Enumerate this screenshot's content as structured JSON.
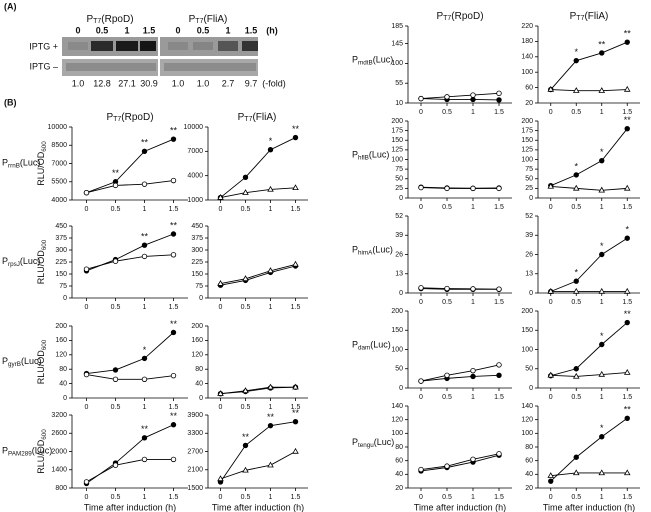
{
  "headers": [
    {
      "prefix": "P",
      "sub": "T7",
      "suffix": "(RpoD)"
    },
    {
      "prefix": "P",
      "sub": "T7",
      "suffix": "(FliA)"
    }
  ],
  "panel_a": {
    "label": "(A)",
    "times": [
      "0",
      "0.5",
      "1",
      "1.5"
    ],
    "time_unit": "(h)",
    "rows": [
      "IPTG +",
      "IPTG –"
    ],
    "folds": [
      [
        "1.0",
        "12.8",
        "27.1",
        "30.9"
      ],
      [
        "1.0",
        "1.0",
        "2.7",
        "9.7"
      ]
    ],
    "fold_unit": "(-fold)"
  },
  "panel_b": {
    "label": "(B)"
  },
  "chart_data": [
    {
      "type": "line",
      "row_label": {
        "prefix": "P",
        "sub": "rrnB",
        "suffix": "(Luc)"
      },
      "ylabel": {
        "main": "RLU/OD",
        "sub": "600"
      },
      "x": [
        0,
        0.5,
        1,
        1.5
      ],
      "xlim": [
        -0.25,
        1.75
      ],
      "xticks": [
        0,
        0.5,
        1,
        1.5
      ],
      "ylim": [
        4000,
        10000
      ],
      "yticks": [
        4000,
        5500,
        7000,
        8500,
        10000
      ],
      "series": [
        {
          "marker": "circle",
          "filled": true,
          "color": "#000000",
          "values": [
            4600,
            5500,
            8000,
            9000
          ],
          "annotations": [
            null,
            "**",
            "**",
            "**"
          ]
        },
        {
          "marker": "circle",
          "filled": false,
          "color": "#000000",
          "values": [
            4600,
            5200,
            5300,
            5600
          ]
        }
      ]
    },
    {
      "type": "line",
      "x": [
        0,
        0.5,
        1,
        1.5
      ],
      "xlim": [
        -0.25,
        1.75
      ],
      "xticks": [
        0,
        0.5,
        1,
        1.5
      ],
      "ylim": [
        1000,
        10000
      ],
      "yticks": [
        1000,
        4000,
        7000,
        10000
      ],
      "series": [
        {
          "marker": "circle",
          "filled": true,
          "color": "#000000",
          "values": [
            1300,
            3800,
            7200,
            8700
          ],
          "annotations": [
            null,
            null,
            "*",
            "**"
          ]
        },
        {
          "marker": "triangle",
          "filled": false,
          "color": "#000000",
          "values": [
            1300,
            1900,
            2300,
            2500
          ]
        }
      ]
    },
    {
      "type": "line",
      "row_label": {
        "prefix": "P",
        "sub": "rpsJ",
        "suffix": "(Luc)"
      },
      "ylabel": {
        "main": "RLU/OD",
        "sub": "600"
      },
      "x": [
        0,
        0.5,
        1,
        1.5
      ],
      "xlim": [
        -0.25,
        1.75
      ],
      "xticks": [
        0,
        0.5,
        1,
        1.5
      ],
      "ylim": [
        0,
        450
      ],
      "yticks": [
        0,
        75,
        150,
        225,
        300,
        375,
        450
      ],
      "series": [
        {
          "marker": "circle",
          "filled": true,
          "color": "#000000",
          "values": [
            170,
            240,
            330,
            400
          ],
          "annotations": [
            null,
            null,
            "**",
            "**"
          ]
        },
        {
          "marker": "circle",
          "filled": false,
          "color": "#000000",
          "values": [
            180,
            230,
            260,
            270
          ]
        }
      ]
    },
    {
      "type": "line",
      "x": [
        0,
        0.5,
        1,
        1.5
      ],
      "xlim": [
        -0.25,
        1.75
      ],
      "xticks": [
        0,
        0.5,
        1,
        1.5
      ],
      "ylim": [
        0,
        450
      ],
      "yticks": [
        0,
        75,
        150,
        225,
        300,
        375,
        450
      ],
      "series": [
        {
          "marker": "circle",
          "filled": true,
          "color": "#000000",
          "values": [
            80,
            110,
            160,
            200
          ]
        },
        {
          "marker": "triangle",
          "filled": false,
          "color": "#000000",
          "values": [
            90,
            120,
            170,
            210
          ]
        }
      ]
    },
    {
      "type": "line",
      "row_label": {
        "prefix": "P",
        "sub": "gyrB",
        "suffix": "(Luc)"
      },
      "ylabel": {
        "main": "RLU/OD",
        "sub": "600"
      },
      "x": [
        0,
        0.5,
        1,
        1.5
      ],
      "xlim": [
        -0.25,
        1.75
      ],
      "xticks": [
        0,
        0.5,
        1,
        1.5
      ],
      "ylim": [
        0,
        200
      ],
      "yticks": [
        0,
        40,
        80,
        120,
        160,
        200
      ],
      "series": [
        {
          "marker": "circle",
          "filled": true,
          "color": "#000000",
          "values": [
            68,
            78,
            110,
            182
          ],
          "annotations": [
            null,
            null,
            "*",
            "**"
          ]
        },
        {
          "marker": "circle",
          "filled": false,
          "color": "#000000",
          "values": [
            65,
            52,
            52,
            62
          ]
        }
      ]
    },
    {
      "type": "line",
      "x": [
        0,
        0.5,
        1,
        1.5
      ],
      "xlim": [
        -0.25,
        1.75
      ],
      "xticks": [
        0,
        0.5,
        1,
        1.5
      ],
      "ylim": [
        0,
        200
      ],
      "yticks": [
        0,
        40,
        80,
        120,
        160,
        200
      ],
      "series": [
        {
          "marker": "circle",
          "filled": true,
          "color": "#000000",
          "values": [
            12,
            18,
            28,
            30
          ]
        },
        {
          "marker": "triangle",
          "filled": false,
          "color": "#000000",
          "values": [
            12,
            20,
            30,
            30
          ]
        }
      ]
    },
    {
      "type": "line",
      "row_label": {
        "prefix": "P",
        "sub": "PAM289",
        "suffix": "(Luc)"
      },
      "ylabel": {
        "main": "RLU/OD",
        "sub": "600"
      },
      "xlabel": "Time after induction (h)",
      "x": [
        0,
        0.5,
        1,
        1.5
      ],
      "xlim": [
        -0.25,
        1.75
      ],
      "xticks": [
        0,
        0.5,
        1,
        1.5
      ],
      "ylim": [
        800,
        3200
      ],
      "yticks": [
        800,
        1400,
        2000,
        2600,
        3200
      ],
      "series": [
        {
          "marker": "circle",
          "filled": true,
          "color": "#000000",
          "values": [
            950,
            1620,
            2450,
            2880
          ],
          "annotations": [
            null,
            null,
            "**",
            "**"
          ]
        },
        {
          "marker": "circle",
          "filled": false,
          "color": "#000000",
          "values": [
            1000,
            1550,
            1740,
            1740
          ]
        }
      ]
    },
    {
      "type": "line",
      "xlabel": "Time after induction (h)",
      "x": [
        0,
        0.5,
        1,
        1.5
      ],
      "xlim": [
        -0.25,
        1.75
      ],
      "xticks": [
        0,
        0.5,
        1,
        1.5
      ],
      "ylim": [
        1500,
        3900
      ],
      "yticks": [
        1500,
        2100,
        2700,
        3300,
        3900
      ],
      "series": [
        {
          "marker": "circle",
          "filled": true,
          "color": "#000000",
          "values": [
            1700,
            2900,
            3550,
            3680
          ],
          "annotations": [
            null,
            "**",
            "**",
            "**"
          ]
        },
        {
          "marker": "triangle",
          "filled": false,
          "color": "#000000",
          "values": [
            1800,
            2080,
            2250,
            2700
          ]
        }
      ]
    },
    {
      "type": "line",
      "row_label": {
        "prefix": "P",
        "sub": "mdtB",
        "suffix": "(Luc)"
      },
      "x": [
        0,
        0.5,
        1,
        1.5
      ],
      "xlim": [
        -0.25,
        1.75
      ],
      "xticks": [
        0,
        0.5,
        1,
        1.5
      ],
      "ylim": [
        10,
        185
      ],
      "yticks": [
        10,
        55,
        100,
        145,
        185
      ],
      "series": [
        {
          "marker": "circle",
          "filled": true,
          "color": "#000000",
          "values": [
            20,
            18,
            18,
            17
          ]
        },
        {
          "marker": "circle",
          "filled": false,
          "color": "#000000",
          "values": [
            20,
            24,
            28,
            32
          ]
        }
      ]
    },
    {
      "type": "line",
      "x": [
        0,
        0.5,
        1,
        1.5
      ],
      "xlim": [
        -0.25,
        1.75
      ],
      "xticks": [
        0,
        0.5,
        1,
        1.5
      ],
      "ylim": [
        20,
        220
      ],
      "yticks": [
        20,
        60,
        100,
        140,
        180,
        220
      ],
      "series": [
        {
          "marker": "circle",
          "filled": true,
          "color": "#000000",
          "values": [
            55,
            130,
            150,
            178
          ],
          "annotations": [
            null,
            "*",
            "**",
            "**"
          ]
        },
        {
          "marker": "triangle",
          "filled": false,
          "color": "#000000",
          "values": [
            55,
            52,
            52,
            55
          ]
        }
      ]
    },
    {
      "type": "line",
      "row_label": {
        "prefix": "P",
        "sub": "hflB",
        "suffix": "(Luc)"
      },
      "x": [
        0,
        0.5,
        1,
        1.5
      ],
      "xlim": [
        -0.25,
        1.75
      ],
      "xticks": [
        0,
        0.5,
        1,
        1.5
      ],
      "ylim": [
        0,
        200
      ],
      "yticks": [
        0,
        25,
        50,
        75,
        100,
        125,
        150,
        175,
        200
      ],
      "series": [
        {
          "marker": "circle",
          "filled": true,
          "color": "#000000",
          "values": [
            28,
            26,
            25,
            26
          ]
        },
        {
          "marker": "circle",
          "filled": false,
          "color": "#000000",
          "values": [
            27,
            25,
            25,
            25
          ]
        }
      ]
    },
    {
      "type": "line",
      "x": [
        0,
        0.5,
        1,
        1.5
      ],
      "xlim": [
        -0.25,
        1.75
      ],
      "xticks": [
        0,
        0.5,
        1,
        1.5
      ],
      "ylim": [
        0,
        200
      ],
      "yticks": [
        0,
        25,
        50,
        75,
        100,
        125,
        150,
        175,
        200
      ],
      "series": [
        {
          "marker": "circle",
          "filled": true,
          "color": "#000000",
          "values": [
            32,
            60,
            97,
            180
          ],
          "annotations": [
            null,
            "*",
            "*",
            "**"
          ]
        },
        {
          "marker": "triangle",
          "filled": false,
          "color": "#000000",
          "values": [
            30,
            25,
            20,
            25
          ]
        }
      ]
    },
    {
      "type": "line",
      "row_label": {
        "prefix": "P",
        "sub": "himA",
        "suffix": "(Luc)"
      },
      "x": [
        0,
        0.5,
        1,
        1.5
      ],
      "xlim": [
        -0.25,
        1.75
      ],
      "xticks": [
        0,
        0.5,
        1,
        1.5
      ],
      "ylim": [
        0,
        52
      ],
      "yticks": [
        0,
        13,
        26,
        39,
        52
      ],
      "series": [
        {
          "marker": "circle",
          "filled": true,
          "color": "#000000",
          "values": [
            3,
            2.5,
            2.5,
            2.5
          ]
        },
        {
          "marker": "circle",
          "filled": false,
          "color": "#000000",
          "values": [
            3.5,
            3,
            2.8,
            2.6
          ]
        }
      ]
    },
    {
      "type": "line",
      "x": [
        0,
        0.5,
        1,
        1.5
      ],
      "xlim": [
        -0.25,
        1.75
      ],
      "xticks": [
        0,
        0.5,
        1,
        1.5
      ],
      "ylim": [
        0,
        52
      ],
      "yticks": [
        0,
        13,
        26,
        39,
        52
      ],
      "series": [
        {
          "marker": "circle",
          "filled": true,
          "color": "#000000",
          "values": [
            1,
            8,
            26,
            37
          ],
          "annotations": [
            null,
            "*",
            "*",
            "*"
          ]
        },
        {
          "marker": "triangle",
          "filled": false,
          "color": "#000000",
          "values": [
            1,
            1,
            1,
            1
          ]
        }
      ]
    },
    {
      "type": "line",
      "row_label": {
        "prefix": "P",
        "sub": "dam",
        "suffix": "(Luc)"
      },
      "x": [
        0,
        0.5,
        1,
        1.5
      ],
      "xlim": [
        -0.25,
        1.75
      ],
      "xticks": [
        0,
        0.5,
        1,
        1.5
      ],
      "ylim": [
        0,
        200
      ],
      "yticks": [
        0,
        50,
        100,
        150,
        200
      ],
      "series": [
        {
          "marker": "circle",
          "filled": true,
          "color": "#000000",
          "values": [
            18,
            25,
            30,
            33
          ]
        },
        {
          "marker": "circle",
          "filled": false,
          "color": "#000000",
          "values": [
            18,
            33,
            45,
            60
          ]
        }
      ]
    },
    {
      "type": "line",
      "x": [
        0,
        0.5,
        1,
        1.5
      ],
      "xlim": [
        -0.25,
        1.75
      ],
      "xticks": [
        0,
        0.5,
        1,
        1.5
      ],
      "ylim": [
        0,
        200
      ],
      "yticks": [
        0,
        50,
        100,
        150,
        200
      ],
      "series": [
        {
          "marker": "circle",
          "filled": true,
          "color": "#000000",
          "values": [
            32,
            50,
            113,
            170
          ],
          "annotations": [
            null,
            null,
            "*",
            "**"
          ]
        },
        {
          "marker": "triangle",
          "filled": false,
          "color": "#000000",
          "values": [
            33,
            30,
            35,
            40
          ]
        }
      ]
    },
    {
      "type": "line",
      "row_label": {
        "prefix": "P",
        "sub": "tengu",
        "suffix": "(Luc)"
      },
      "xlabel": "Time after induction (h)",
      "x": [
        0,
        0.5,
        1,
        1.5
      ],
      "xlim": [
        -0.25,
        1.75
      ],
      "xticks": [
        0,
        0.5,
        1,
        1.5
      ],
      "ylim": [
        20,
        140
      ],
      "yticks": [
        20,
        40,
        60,
        80,
        100,
        120,
        140
      ],
      "series": [
        {
          "marker": "circle",
          "filled": true,
          "color": "#000000",
          "values": [
            45,
            50,
            58,
            68
          ]
        },
        {
          "marker": "circle",
          "filled": false,
          "color": "#000000",
          "values": [
            47,
            52,
            62,
            70
          ]
        }
      ]
    },
    {
      "type": "line",
      "xlabel": "Time after induction (h)",
      "x": [
        0,
        0.5,
        1,
        1.5
      ],
      "xlim": [
        -0.25,
        1.75
      ],
      "xticks": [
        0,
        0.5,
        1,
        1.5
      ],
      "ylim": [
        20,
        140
      ],
      "yticks": [
        20,
        40,
        60,
        80,
        100,
        120,
        140
      ],
      "series": [
        {
          "marker": "circle",
          "filled": true,
          "color": "#000000",
          "values": [
            30,
            65,
            95,
            122
          ],
          "annotations": [
            null,
            null,
            "*",
            "**"
          ]
        },
        {
          "marker": "triangle",
          "filled": false,
          "color": "#000000",
          "values": [
            38,
            42,
            42,
            42
          ]
        }
      ]
    }
  ]
}
